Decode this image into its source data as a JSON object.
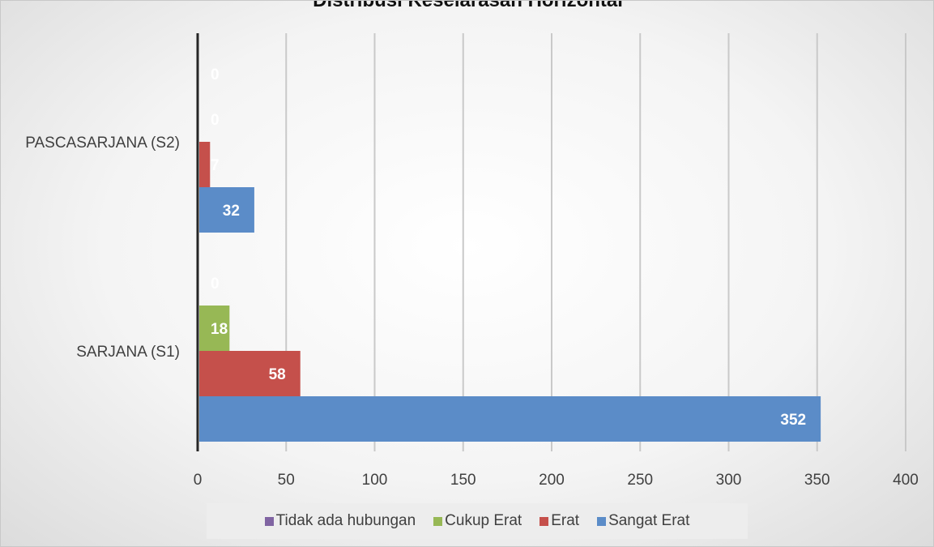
{
  "chart_data": {
    "type": "bar",
    "orientation": "horizontal",
    "title": "Distribusi Keselarasan Horizontal",
    "categories": [
      "SARJANA (S1)",
      "PASCASARJANA (S2)"
    ],
    "series": [
      {
        "name": "Sangat Erat",
        "color": "#5b8cc8",
        "values": [
          352,
          32
        ]
      },
      {
        "name": "Erat",
        "color": "#c5504b",
        "values": [
          58,
          7
        ]
      },
      {
        "name": "Cukup Erat",
        "color": "#97b855",
        "values": [
          18,
          0
        ]
      },
      {
        "name": "Tidak ada hubungan",
        "color": "#8064a2",
        "values": [
          0,
          0
        ]
      }
    ],
    "data_labels": [
      [
        "352",
        "32"
      ],
      [
        "58",
        "7"
      ],
      [
        "18",
        "0"
      ],
      [
        "0",
        "0"
      ]
    ],
    "xlim": [
      0,
      400
    ],
    "xticks": [
      "0",
      "50",
      "100",
      "150",
      "200",
      "250",
      "300",
      "350",
      "400"
    ],
    "grid": true,
    "legend_position": "bottom",
    "legend": [
      "Tidak ada hubungan",
      "Cukup Erat",
      "Erat",
      "Sangat Erat"
    ]
  }
}
